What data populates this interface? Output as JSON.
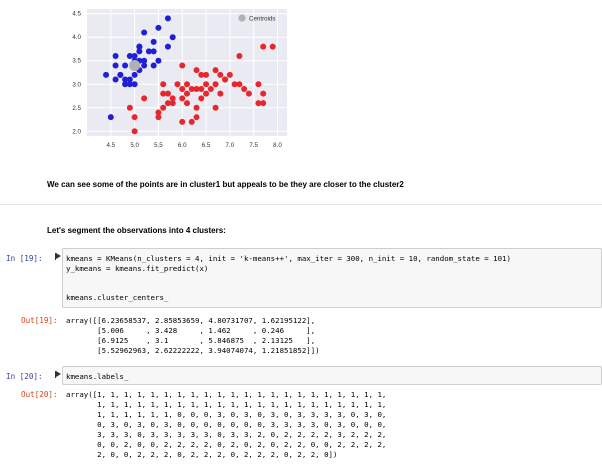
{
  "chart_data": {
    "type": "scatter",
    "xlim": [
      4.0,
      8.2
    ],
    "ylim": [
      1.9,
      4.6
    ],
    "x_ticks": [
      "4.5",
      "5.0",
      "5.5",
      "6.0",
      "6.5",
      "7.0",
      "7.5",
      "8.0"
    ],
    "y_ticks": [
      "2.0",
      "2.5",
      "3.0",
      "3.5",
      "4.0",
      "4.5"
    ],
    "x_tick_values": [
      4.5,
      5.0,
      5.5,
      6.0,
      6.5,
      7.0,
      7.5,
      8.0
    ],
    "y_tick_values": [
      2.0,
      2.5,
      3.0,
      3.5,
      4.0,
      4.5
    ],
    "grid": true,
    "legend_position": "top-right",
    "colors": {
      "background": "#eaeaf2",
      "grid": "#ffffff",
      "blue": "#1f1fd6",
      "red": "#e8262d",
      "centroid": "#b0b0b8"
    },
    "series": [
      {
        "color": "blue",
        "points": [
          [
            4.4,
            3.2
          ],
          [
            4.5,
            2.3
          ],
          [
            4.6,
            3.1
          ],
          [
            4.6,
            3.4
          ],
          [
            4.6,
            3.6
          ],
          [
            4.7,
            3.2
          ],
          [
            4.8,
            3.0
          ],
          [
            4.8,
            3.4
          ],
          [
            4.9,
            3.0
          ],
          [
            4.9,
            3.1
          ],
          [
            4.9,
            3.6
          ],
          [
            5.0,
            3.0
          ],
          [
            5.0,
            3.2
          ],
          [
            5.0,
            3.5
          ],
          [
            5.0,
            3.6
          ],
          [
            5.1,
            3.3
          ],
          [
            5.1,
            3.5
          ],
          [
            5.1,
            3.7
          ],
          [
            5.1,
            3.8
          ],
          [
            5.2,
            3.4
          ],
          [
            5.2,
            3.5
          ],
          [
            5.2,
            4.1
          ],
          [
            5.3,
            3.7
          ],
          [
            5.4,
            3.4
          ],
          [
            5.4,
            3.7
          ],
          [
            5.4,
            3.9
          ],
          [
            5.5,
            3.5
          ],
          [
            5.5,
            4.2
          ],
          [
            5.7,
            3.8
          ],
          [
            5.7,
            4.4
          ],
          [
            5.8,
            4.0
          ],
          [
            5.1,
            3.8
          ],
          [
            4.8,
            3.1
          ],
          [
            5.0,
            3.4
          ],
          [
            4.7,
            3.2
          ]
        ]
      },
      {
        "color": "red",
        "points": [
          [
            4.9,
            2.5
          ],
          [
            5.0,
            2.0
          ],
          [
            5.0,
            2.3
          ],
          [
            5.2,
            2.7
          ],
          [
            5.5,
            2.3
          ],
          [
            5.5,
            2.4
          ],
          [
            5.6,
            2.5
          ],
          [
            5.6,
            2.8
          ],
          [
            5.6,
            3.0
          ],
          [
            5.7,
            2.6
          ],
          [
            5.7,
            2.8
          ],
          [
            5.8,
            2.7
          ],
          [
            5.9,
            3.0
          ],
          [
            6.0,
            2.2
          ],
          [
            6.0,
            2.7
          ],
          [
            6.0,
            2.9
          ],
          [
            6.0,
            3.4
          ],
          [
            6.1,
            2.6
          ],
          [
            6.1,
            2.8
          ],
          [
            6.1,
            3.0
          ],
          [
            6.2,
            2.2
          ],
          [
            6.2,
            2.9
          ],
          [
            6.3,
            2.3
          ],
          [
            6.3,
            2.5
          ],
          [
            6.3,
            3.3
          ],
          [
            6.4,
            2.7
          ],
          [
            6.4,
            2.9
          ],
          [
            6.4,
            3.2
          ],
          [
            6.5,
            2.8
          ],
          [
            6.5,
            3.0
          ],
          [
            6.6,
            2.9
          ],
          [
            6.7,
            2.5
          ],
          [
            6.7,
            3.0
          ],
          [
            6.7,
            3.3
          ],
          [
            6.8,
            2.8
          ],
          [
            6.8,
            3.2
          ],
          [
            6.9,
            3.1
          ],
          [
            7.0,
            3.2
          ],
          [
            7.1,
            3.0
          ],
          [
            7.2,
            3.0
          ],
          [
            7.2,
            3.6
          ],
          [
            7.3,
            2.9
          ],
          [
            7.4,
            2.8
          ],
          [
            7.6,
            3.0
          ],
          [
            7.7,
            2.6
          ],
          [
            7.7,
            2.8
          ],
          [
            7.7,
            3.8
          ],
          [
            7.9,
            3.8
          ],
          [
            6.9,
            3.1
          ],
          [
            6.3,
            2.9
          ],
          [
            5.8,
            2.6
          ],
          [
            6.5,
            3.2
          ],
          [
            7.6,
            2.6
          ]
        ]
      }
    ],
    "centroids": [
      [
        5.0,
        3.4
      ]
    ],
    "legend": [
      "Centroids"
    ]
  },
  "markdown": {
    "line1": "We can see some of the points are in cluster1 but appeals to be they are closer to the cluster2",
    "line2": "Let's segment the observations into 4 clusters:"
  },
  "cells": [
    {
      "in_prompt": "In [19]:",
      "code_lines": [
        "kmeans = KMeans(n_clusters = 4, init = 'k-means++', max_iter = 300, n_init = 10, random_state = 101)",
        "y_kmeans = kmeans.fit_predict(x)",
        "",
        "kmeans.cluster_centers_"
      ],
      "out_prompt": "Out[19]:",
      "output_lines": [
        "array([[6.23658537, 2.85853659, 4.80731707, 1.62195122],",
        "       [5.006     , 3.428     , 1.462     , 0.246     ],",
        "       [6.9125    , 3.1       , 5.846875  , 2.13125   ],",
        "       [5.52962963, 2.62222222, 3.94074074, 1.21851852]])"
      ]
    },
    {
      "in_prompt": "In [20]:",
      "code_lines": [
        "kmeans.labels_"
      ],
      "out_prompt": "Out[20]:",
      "output_lines": [
        "array([1, 1, 1, 1, 1, 1, 1, 1, 1, 1, 1, 1, 1, 1, 1, 1, 1, 1, 1, 1, 1, 1,",
        "       1, 1, 1, 1, 1, 1, 1, 1, 1, 1, 1, 1, 1, 1, 1, 1, 1, 1, 1, 1, 1, 1,",
        "       1, 1, 1, 1, 1, 1, 0, 0, 0, 3, 0, 3, 0, 3, 0, 3, 3, 3, 3, 0, 3, 0,",
        "       0, 3, 0, 3, 0, 3, 0, 0, 0, 0, 0, 0, 0, 3, 3, 3, 3, 0, 3, 0, 0, 0,",
        "       3, 3, 3, 0, 3, 3, 3, 3, 3, 0, 3, 3, 2, 0, 2, 2, 2, 2, 3, 2, 2, 2,",
        "       0, 0, 2, 0, 0, 2, 2, 2, 2, 0, 2, 0, 2, 0, 2, 2, 0, 0, 2, 2, 2, 2,",
        "       2, 0, 0, 2, 2, 2, 0, 2, 2, 2, 0, 2, 2, 2, 0, 2, 2, 0])"
      ]
    }
  ]
}
